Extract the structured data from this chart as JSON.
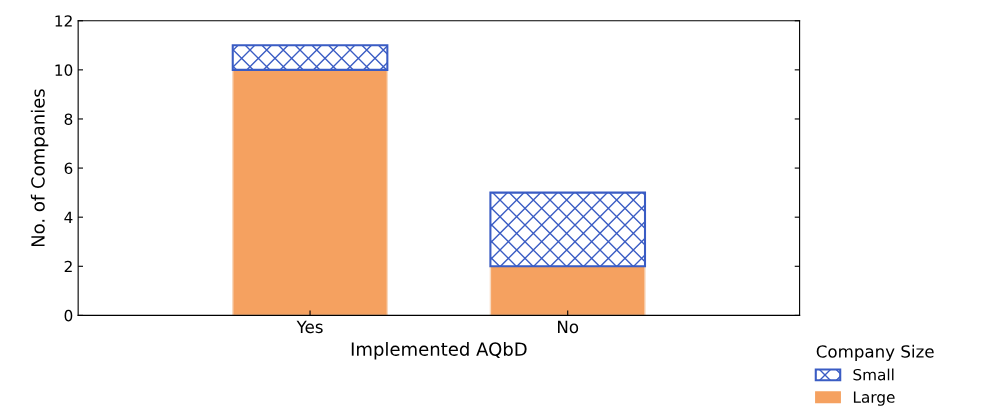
{
  "chart_data": {
    "type": "bar",
    "stacked": true,
    "xlabel": "Implemented AQbD",
    "ylabel": "No. of Companies",
    "legend_title": "Company Size",
    "legend": "bottom right",
    "categories": [
      "Yes",
      "No"
    ],
    "series": [
      {
        "name": "Large",
        "color": "#f5a160",
        "values": [
          10,
          2
        ]
      },
      {
        "name": "Small",
        "color": "#3a5cc4",
        "values": [
          1,
          3
        ]
      }
    ],
    "ylim": [
      0,
      12
    ],
    "yticks": [
      0,
      2,
      4,
      6,
      8,
      10,
      12
    ],
    "grid": false
  }
}
